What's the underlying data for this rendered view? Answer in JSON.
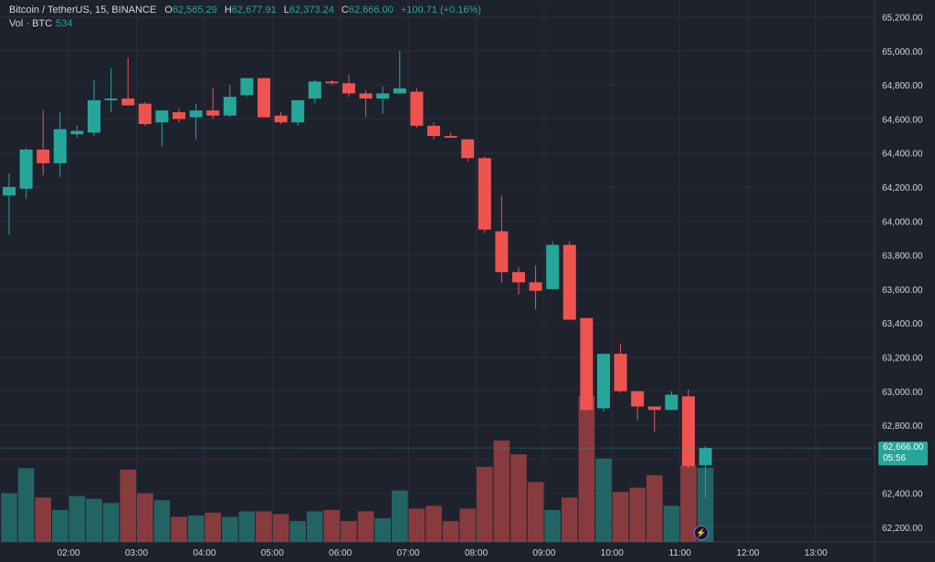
{
  "legend": {
    "symbol": "Bitcoin / TetherUS, 15, BINANCE",
    "o_label": "O",
    "o_value": "62,565.29",
    "h_label": "H",
    "h_value": "62,677.91",
    "l_label": "L",
    "l_value": "62,373.24",
    "c_label": "C",
    "c_value": "62,666.00",
    "change": "+100.71 (+0.16%)"
  },
  "volume_legend": {
    "label": "Vol · BTC",
    "value": "534"
  },
  "last_price": {
    "price": "62,666.00",
    "countdown": "05:56"
  },
  "alert_icon": "lightning-icon",
  "colors": {
    "background": "#1e222d",
    "grid": "#2a2e39",
    "up": "#26a69a",
    "down": "#ef5350",
    "text": "#d1d4dc"
  },
  "chart_data": {
    "type": "candlestick",
    "grid": true,
    "y_axis": {
      "position": "right",
      "ylim": [
        62100,
        65300
      ],
      "ticks": [
        "62,200.00",
        "62,400.00",
        "62,600.00",
        "62,800.00",
        "63,000.00",
        "63,200.00",
        "63,400.00",
        "63,600.00",
        "63,800.00",
        "64,000.00",
        "64,200.00",
        "64,400.00",
        "64,600.00",
        "64,800.00",
        "65,000.00",
        "65,200.00"
      ],
      "tick_values": [
        62200,
        62400,
        62600,
        62800,
        63000,
        63200,
        63400,
        63600,
        63800,
        64000,
        64200,
        64400,
        64600,
        64800,
        65000,
        65200
      ]
    },
    "x_axis": {
      "ticks": [
        "02:00",
        "03:00",
        "04:00",
        "05:00",
        "06:00",
        "07:00",
        "08:00",
        "09:00",
        "10:00",
        "11:00",
        "12:00",
        "13:00"
      ],
      "tick_slots": [
        3.5,
        7.5,
        11.5,
        15.5,
        19.5,
        23.5,
        27.5,
        31.5,
        35.5,
        39.5,
        43.5,
        47.5
      ],
      "slots_visible": 51.2
    },
    "candles": [
      {
        "o": 64150,
        "h": 64280,
        "l": 63920,
        "c": 64200,
        "v": 0.35
      },
      {
        "o": 64190,
        "h": 64430,
        "l": 64130,
        "c": 64420,
        "v": 0.53
      },
      {
        "o": 64420,
        "h": 64650,
        "l": 64270,
        "c": 64340,
        "v": 0.32
      },
      {
        "o": 64340,
        "h": 64640,
        "l": 64260,
        "c": 64540,
        "v": 0.23
      },
      {
        "o": 64510,
        "h": 64560,
        "l": 64490,
        "c": 64530,
        "v": 0.33
      },
      {
        "o": 64520,
        "h": 64830,
        "l": 64500,
        "c": 64710,
        "v": 0.31
      },
      {
        "o": 64710,
        "h": 64900,
        "l": 64640,
        "c": 64720,
        "v": 0.28
      },
      {
        "o": 64720,
        "h": 64960,
        "l": 64680,
        "c": 64680,
        "v": 0.52
      },
      {
        "o": 64690,
        "h": 64700,
        "l": 64560,
        "c": 64570,
        "v": 0.35
      },
      {
        "o": 64580,
        "h": 64620,
        "l": 64440,
        "c": 64650,
        "v": 0.3
      },
      {
        "o": 64640,
        "h": 64660,
        "l": 64580,
        "c": 64600,
        "v": 0.18
      },
      {
        "o": 64610,
        "h": 64690,
        "l": 64480,
        "c": 64650,
        "v": 0.19
      },
      {
        "o": 64650,
        "h": 64780,
        "l": 64600,
        "c": 64620,
        "v": 0.21
      },
      {
        "o": 64620,
        "h": 64800,
        "l": 64610,
        "c": 64730,
        "v": 0.18
      },
      {
        "o": 64740,
        "h": 64840,
        "l": 64730,
        "c": 64840,
        "v": 0.22
      },
      {
        "o": 64840,
        "h": 64840,
        "l": 64610,
        "c": 64610,
        "v": 0.22
      },
      {
        "o": 64620,
        "h": 64640,
        "l": 64570,
        "c": 64580,
        "v": 0.2
      },
      {
        "o": 64580,
        "h": 64710,
        "l": 64560,
        "c": 64710,
        "v": 0.15
      },
      {
        "o": 64720,
        "h": 64830,
        "l": 64690,
        "c": 64820,
        "v": 0.22
      },
      {
        "o": 64820,
        "h": 64830,
        "l": 64800,
        "c": 64810,
        "v": 0.23
      },
      {
        "o": 64810,
        "h": 64860,
        "l": 64730,
        "c": 64750,
        "v": 0.15
      },
      {
        "o": 64750,
        "h": 64770,
        "l": 64610,
        "c": 64720,
        "v": 0.22
      },
      {
        "o": 64720,
        "h": 64790,
        "l": 64630,
        "c": 64750,
        "v": 0.17
      },
      {
        "o": 64750,
        "h": 65000,
        "l": 64750,
        "c": 64780,
        "v": 0.37
      },
      {
        "o": 64760,
        "h": 64780,
        "l": 64550,
        "c": 64560,
        "v": 0.24
      },
      {
        "o": 64560,
        "h": 64580,
        "l": 64480,
        "c": 64500,
        "v": 0.26
      },
      {
        "o": 64500,
        "h": 64520,
        "l": 64490,
        "c": 64490,
        "v": 0.15
      },
      {
        "o": 64480,
        "h": 64460,
        "l": 64350,
        "c": 64370,
        "v": 0.24
      },
      {
        "o": 64370,
        "h": 64380,
        "l": 63930,
        "c": 63950,
        "v": 0.54
      },
      {
        "o": 63940,
        "h": 64150,
        "l": 63640,
        "c": 63700,
        "v": 0.73
      },
      {
        "o": 63700,
        "h": 63730,
        "l": 63570,
        "c": 63640,
        "v": 0.63
      },
      {
        "o": 63640,
        "h": 63740,
        "l": 63480,
        "c": 63590,
        "v": 0.43
      },
      {
        "o": 63600,
        "h": 63880,
        "l": 63600,
        "c": 63860,
        "v": 0.23
      },
      {
        "o": 63860,
        "h": 63880,
        "l": 63420,
        "c": 63420,
        "v": 0.32
      },
      {
        "o": 63430,
        "h": 63430,
        "l": 62880,
        "c": 62890,
        "v": 1.05
      },
      {
        "o": 62900,
        "h": 63220,
        "l": 62880,
        "c": 63220,
        "v": 0.6
      },
      {
        "o": 63220,
        "h": 63280,
        "l": 62990,
        "c": 63000,
        "v": 0.36
      },
      {
        "o": 63000,
        "h": 63000,
        "l": 62830,
        "c": 62910,
        "v": 0.39
      },
      {
        "o": 62910,
        "h": 62900,
        "l": 62760,
        "c": 62890,
        "v": 0.48
      },
      {
        "o": 62890,
        "h": 63000,
        "l": 62890,
        "c": 62980,
        "v": 0.26
      },
      {
        "o": 62970,
        "h": 63010,
        "l": 62550,
        "c": 62560,
        "v": 0.55
      },
      {
        "o": 62565.29,
        "h": 62677.91,
        "l": 62373.24,
        "c": 62666,
        "v": 0.534
      }
    ],
    "volume_scale_max": 1.05
  }
}
